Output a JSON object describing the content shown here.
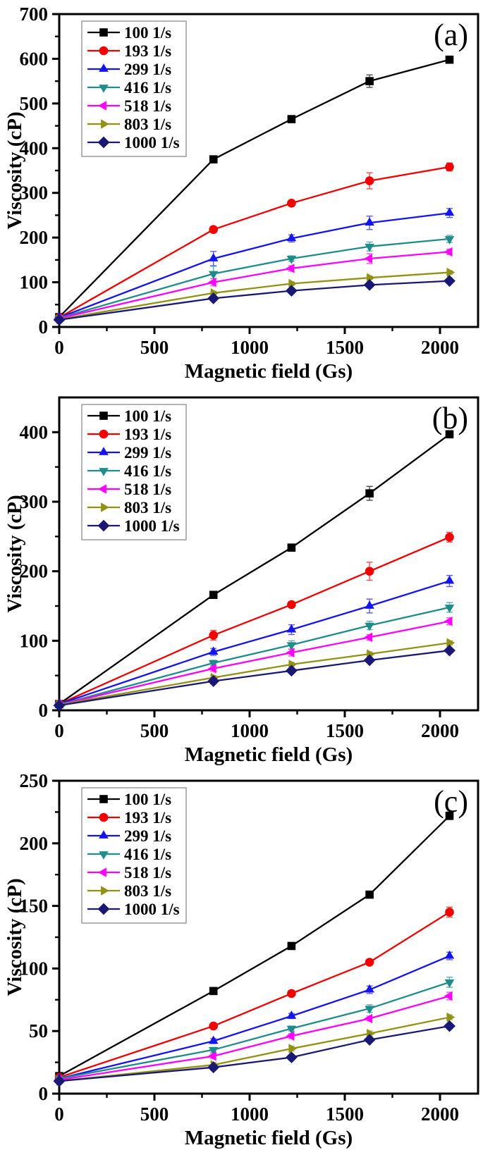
{
  "figure": {
    "background": "#ffffff",
    "xlabel": "Magnetic field (Gs)",
    "ylabel": "Viscosity (cP)"
  },
  "chart_data": [
    {
      "type": "line",
      "panel_label": "(a)",
      "xlabel": "Magnetic field (Gs)",
      "ylabel": "Viscosity (cP)",
      "xlim": [
        0,
        2200
      ],
      "ylim": [
        0,
        700
      ],
      "xticks": [
        0,
        500,
        1000,
        1500,
        2000
      ],
      "yticks": [
        0,
        100,
        200,
        300,
        400,
        500,
        600,
        700
      ],
      "x_minor_step": 250,
      "y_minor_step": 50,
      "grid": false,
      "legend_position": "top-left",
      "x": [
        0,
        810,
        1220,
        1630,
        2050
      ],
      "series": [
        {
          "name": "100 1/s",
          "color": "#000000",
          "marker": "square",
          "values": [
            22,
            375,
            465,
            550,
            598
          ],
          "errors": [
            2,
            4,
            5,
            14,
            7
          ]
        },
        {
          "name": "193 1/s",
          "color": "#f20000",
          "marker": "circle",
          "values": [
            21,
            218,
            277,
            327,
            358
          ],
          "errors": [
            2,
            7,
            6,
            18,
            9
          ]
        },
        {
          "name": "299 1/s",
          "color": "#1414f0",
          "marker": "triangle-up",
          "values": [
            21,
            153,
            198,
            233,
            255
          ],
          "errors": [
            2,
            16,
            8,
            15,
            10
          ]
        },
        {
          "name": "416 1/s",
          "color": "#1f8c8c",
          "marker": "triangle-down",
          "values": [
            20,
            119,
            153,
            180,
            197
          ],
          "errors": [
            2,
            17,
            6,
            10,
            8
          ]
        },
        {
          "name": "518 1/s",
          "color": "#ff00ff",
          "marker": "triangle-left",
          "values": [
            19,
            100,
            131,
            153,
            168
          ],
          "errors": [
            2,
            8,
            6,
            11,
            6
          ]
        },
        {
          "name": "803 1/s",
          "color": "#919112",
          "marker": "triangle-right",
          "values": [
            17,
            76,
            97,
            110,
            122
          ],
          "errors": [
            2,
            4,
            4,
            4,
            4
          ]
        },
        {
          "name": "1000 1/s",
          "color": "#191975",
          "marker": "diamond",
          "values": [
            16,
            64,
            81,
            94,
            103
          ],
          "errors": [
            2,
            3,
            3,
            3,
            3
          ]
        }
      ]
    },
    {
      "type": "line",
      "panel_label": "(b)",
      "xlabel": "Magnetic field (Gs)",
      "ylabel": "Viscosity (cP)",
      "xlim": [
        0,
        2200
      ],
      "ylim": [
        0,
        450
      ],
      "xticks": [
        0,
        500,
        1000,
        1500,
        2000
      ],
      "yticks": [
        0,
        100,
        200,
        300,
        400
      ],
      "x_minor_step": 250,
      "y_minor_step": 50,
      "grid": false,
      "legend_position": "top-left",
      "x": [
        0,
        810,
        1220,
        1630,
        2050
      ],
      "series": [
        {
          "name": "100 1/s",
          "color": "#000000",
          "marker": "square",
          "values": [
            9,
            166,
            234,
            312,
            397
          ],
          "errors": [
            3,
            3,
            4,
            10,
            5
          ]
        },
        {
          "name": "193 1/s",
          "color": "#f20000",
          "marker": "circle",
          "values": [
            9,
            108,
            152,
            200,
            249
          ],
          "errors": [
            5,
            7,
            4,
            13,
            7
          ]
        },
        {
          "name": "299 1/s",
          "color": "#1414f0",
          "marker": "triangle-up",
          "values": [
            9,
            84,
            116,
            150,
            186
          ],
          "errors": [
            3,
            5,
            7,
            10,
            8
          ]
        },
        {
          "name": "416 1/s",
          "color": "#1f8c8c",
          "marker": "triangle-down",
          "values": [
            8,
            68,
            94,
            122,
            148
          ],
          "errors": [
            3,
            4,
            6,
            6,
            7
          ]
        },
        {
          "name": "518 1/s",
          "color": "#ff00ff",
          "marker": "triangle-left",
          "values": [
            8,
            60,
            83,
            105,
            128
          ],
          "errors": [
            3,
            4,
            5,
            4,
            5
          ]
        },
        {
          "name": "803 1/s",
          "color": "#919112",
          "marker": "triangle-right",
          "values": [
            8,
            47,
            66,
            81,
            97
          ],
          "errors": [
            2,
            3,
            3,
            3,
            3
          ]
        },
        {
          "name": "1000 1/s",
          "color": "#191975",
          "marker": "diamond",
          "values": [
            7,
            42,
            57,
            72,
            86
          ],
          "errors": [
            2,
            4,
            3,
            3,
            3
          ]
        }
      ]
    },
    {
      "type": "line",
      "panel_label": "(c)",
      "xlabel": "Magnetic field (Gs)",
      "ylabel": "Viscosity (cP)",
      "xlim": [
        0,
        2200
      ],
      "ylim": [
        0,
        250
      ],
      "xticks": [
        0,
        500,
        1000,
        1500,
        2000
      ],
      "yticks": [
        0,
        50,
        100,
        150,
        200,
        250
      ],
      "x_minor_step": 250,
      "y_minor_step": 25,
      "grid": false,
      "legend_position": "top-left",
      "x": [
        0,
        810,
        1220,
        1630,
        2050
      ],
      "series": [
        {
          "name": "100 1/s",
          "color": "#000000",
          "marker": "square",
          "values": [
            14,
            82,
            118,
            159,
            222
          ],
          "errors": [
            2,
            2,
            2,
            2,
            3
          ]
        },
        {
          "name": "193 1/s",
          "color": "#f20000",
          "marker": "circle",
          "values": [
            13,
            54,
            80,
            105,
            145
          ],
          "errors": [
            2,
            2,
            2,
            2,
            4
          ]
        },
        {
          "name": "299 1/s",
          "color": "#1414f0",
          "marker": "triangle-up",
          "values": [
            12,
            42,
            62,
            83,
            110
          ],
          "errors": [
            2,
            2,
            2,
            3,
            3
          ]
        },
        {
          "name": "416 1/s",
          "color": "#1f8c8c",
          "marker": "triangle-down",
          "values": [
            12,
            35,
            52,
            68,
            89
          ],
          "errors": [
            2,
            2,
            2,
            3,
            4
          ]
        },
        {
          "name": "518 1/s",
          "color": "#ff00ff",
          "marker": "triangle-left",
          "values": [
            11,
            30,
            46,
            60,
            78
          ],
          "errors": [
            2,
            2,
            2,
            2,
            3
          ]
        },
        {
          "name": "803 1/s",
          "color": "#919112",
          "marker": "triangle-right",
          "values": [
            10,
            23,
            36,
            48,
            61
          ],
          "errors": [
            1,
            2,
            2,
            2,
            2
          ]
        },
        {
          "name": "1000 1/s",
          "color": "#191975",
          "marker": "diamond",
          "values": [
            10,
            21,
            29,
            43,
            54
          ],
          "errors": [
            1,
            2,
            2,
            2,
            2
          ]
        }
      ]
    }
  ]
}
